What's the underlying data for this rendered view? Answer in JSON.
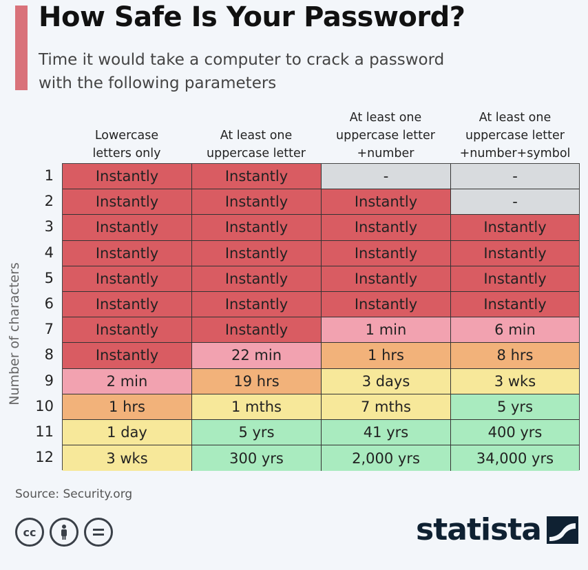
{
  "header": {
    "title": "How Safe Is Your Password?",
    "subtitle": "Time it would take a computer to crack a password with the following parameters"
  },
  "colors": {
    "accent": "#d9727a",
    "red": "#d95c62",
    "pink": "#f2a2b0",
    "orange": "#f2b27a",
    "yellow": "#f7e89a",
    "green": "#a9ebbf",
    "grey": "#d8dbde"
  },
  "chart_data": {
    "type": "table",
    "title": "How Safe Is Your Password?",
    "ylabel": "Number of characters",
    "columns": [
      "Lowercase\nletters only",
      "At least one\nuppercase letter",
      "At least one\nuppercase letter\n+number",
      "At least one\nuppercase letter\n+number+symbol"
    ],
    "rows": [
      "1",
      "2",
      "3",
      "4",
      "5",
      "6",
      "7",
      "8",
      "9",
      "10",
      "11",
      "12"
    ],
    "cells": [
      [
        "Instantly",
        "Instantly",
        "-",
        "-"
      ],
      [
        "Instantly",
        "Instantly",
        "Instantly",
        "-"
      ],
      [
        "Instantly",
        "Instantly",
        "Instantly",
        "Instantly"
      ],
      [
        "Instantly",
        "Instantly",
        "Instantly",
        "Instantly"
      ],
      [
        "Instantly",
        "Instantly",
        "Instantly",
        "Instantly"
      ],
      [
        "Instantly",
        "Instantly",
        "Instantly",
        "Instantly"
      ],
      [
        "Instantly",
        "Instantly",
        "1 min",
        "6 min"
      ],
      [
        "Instantly",
        "22 min",
        "1 hrs",
        "8 hrs"
      ],
      [
        "2 min",
        "19 hrs",
        "3 days",
        "3 wks"
      ],
      [
        "1 hrs",
        "1 mths",
        "7 mths",
        "5 yrs"
      ],
      [
        "1 day",
        "5 yrs",
        "41 yrs",
        "400 yrs"
      ],
      [
        "3 wks",
        "300 yrs",
        "2,000 yrs",
        "34,000 yrs"
      ]
    ],
    "cell_colors": [
      [
        "red",
        "red",
        "grey",
        "grey"
      ],
      [
        "red",
        "red",
        "red",
        "grey"
      ],
      [
        "red",
        "red",
        "red",
        "red"
      ],
      [
        "red",
        "red",
        "red",
        "red"
      ],
      [
        "red",
        "red",
        "red",
        "red"
      ],
      [
        "red",
        "red",
        "red",
        "red"
      ],
      [
        "red",
        "red",
        "pink",
        "pink"
      ],
      [
        "red",
        "pink",
        "orange",
        "orange"
      ],
      [
        "pink",
        "orange",
        "yellow",
        "yellow"
      ],
      [
        "orange",
        "yellow",
        "yellow",
        "green"
      ],
      [
        "yellow",
        "green",
        "green",
        "green"
      ],
      [
        "yellow",
        "green",
        "green",
        "green"
      ]
    ]
  },
  "footer": {
    "source": "Source: Security.org",
    "brand": "statista",
    "license_icons": [
      "cc-icon",
      "by-person-icon",
      "nd-equals-icon"
    ]
  }
}
